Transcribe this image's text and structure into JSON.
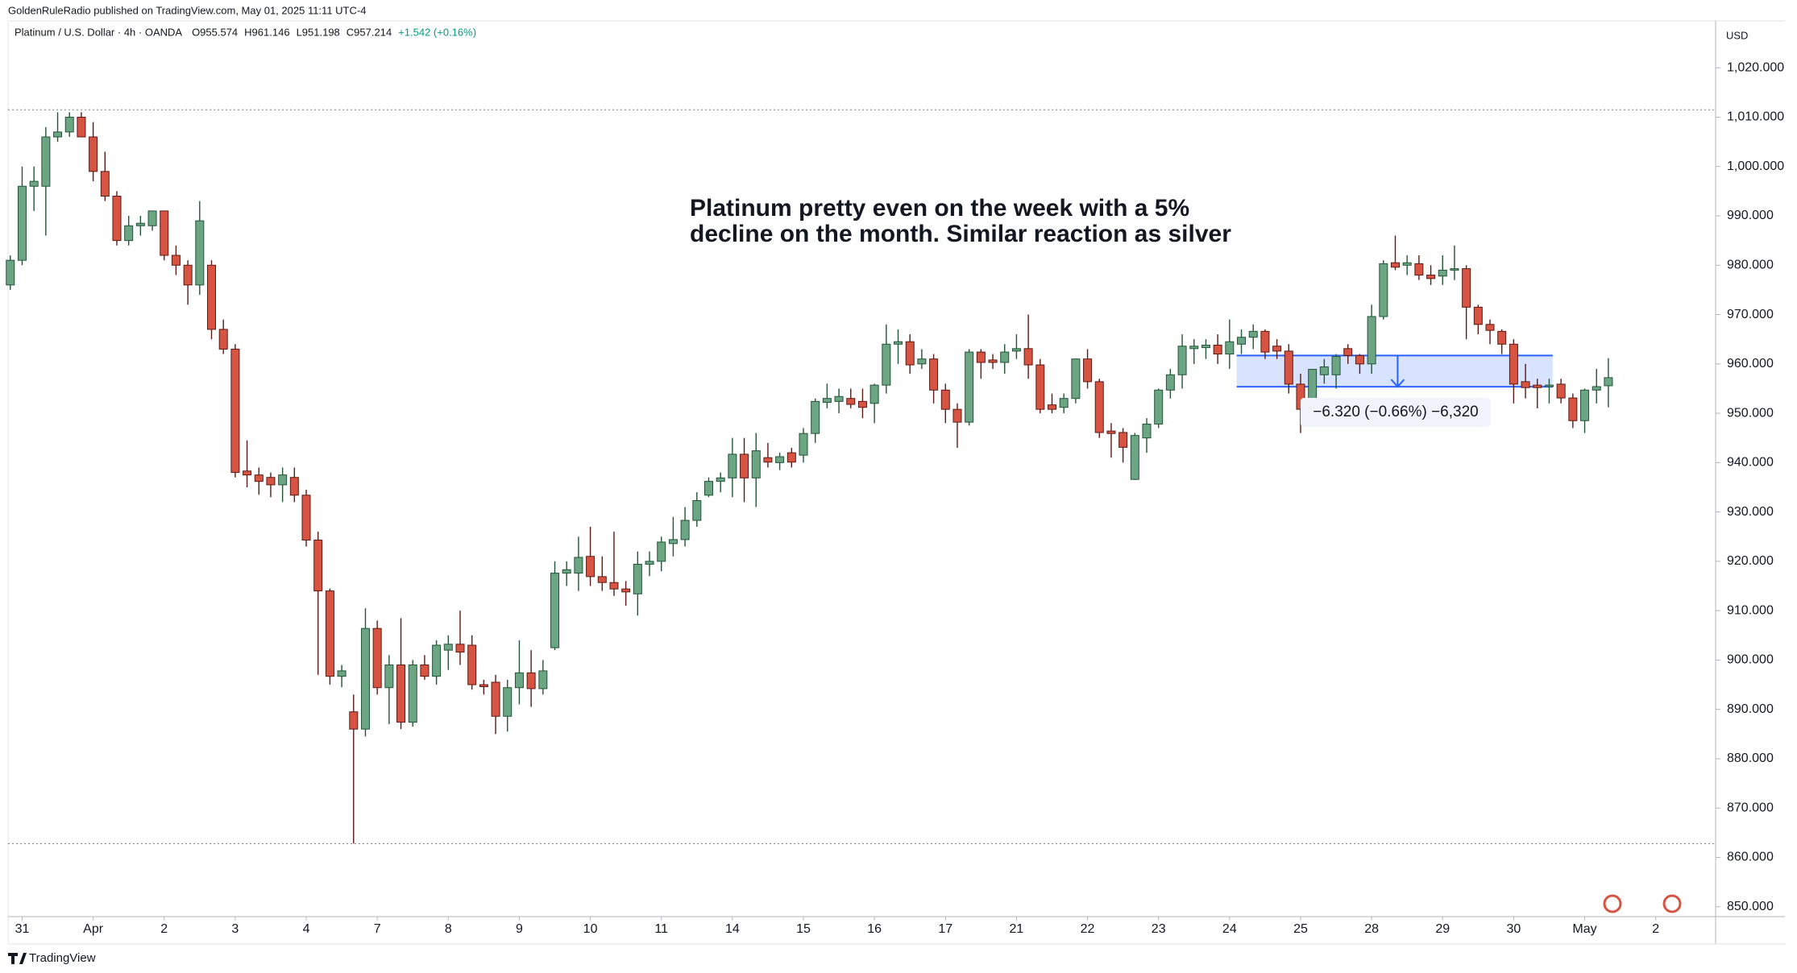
{
  "chart_data": {
    "type": "candlestick",
    "publisher": "GoldenRuleRadio published on TradingView.com, May 01, 2025 11:11 UTC-4",
    "symbol": "Platinum / U.S. Dollar · 4h · OANDA",
    "ohlc_labels": [
      "O955.574",
      "H961.146",
      "L951.198",
      "C957.214",
      "+1.542 (+0.16%)"
    ],
    "currency": "USD",
    "annotation": [
      "Platinum pretty even on the week with a 5%",
      "decline on the month.  Similar reaction as silver"
    ],
    "measure": {
      "start": 961.7,
      "end": 955.38,
      "label": "−6.320 (−0.66%) −6,320"
    },
    "reference_lines": [
      1011.5,
      862.8
    ],
    "brand": "TradingView",
    "up_color": "#6ba583",
    "down_color": "#d75442",
    "xlim": [
      -0.87,
      144.06
    ],
    "ylim": [
      848,
      1029.5
    ],
    "xticks": [
      {
        "value": 1,
        "label": "31"
      },
      {
        "value": 7,
        "label": "Apr"
      },
      {
        "value": 13,
        "label": "2"
      },
      {
        "value": 19,
        "label": "3"
      },
      {
        "value": 25,
        "label": "4"
      },
      {
        "value": 31,
        "label": "7"
      },
      {
        "value": 37,
        "label": "8"
      },
      {
        "value": 43,
        "label": "9"
      },
      {
        "value": 49,
        "label": "10"
      },
      {
        "value": 55,
        "label": "11"
      },
      {
        "value": 61,
        "label": "14"
      },
      {
        "value": 67,
        "label": "15"
      },
      {
        "value": 73,
        "label": "16"
      },
      {
        "value": 79,
        "label": "17"
      },
      {
        "value": 85,
        "label": "21"
      },
      {
        "value": 91,
        "label": "22"
      },
      {
        "value": 97,
        "label": "23"
      },
      {
        "value": 103,
        "label": "24"
      },
      {
        "value": 109,
        "label": "25"
      },
      {
        "value": 115,
        "label": "28"
      },
      {
        "value": 121,
        "label": "29"
      },
      {
        "value": 127,
        "label": "30"
      },
      {
        "value": 133,
        "label": "May"
      },
      {
        "value": 139,
        "label": "2"
      }
    ],
    "yticks": [
      {
        "value": 850,
        "label": "850.000"
      },
      {
        "value": 860,
        "label": "860.000"
      },
      {
        "value": 870,
        "label": "870.000"
      },
      {
        "value": 880,
        "label": "880.000"
      },
      {
        "value": 890,
        "label": "890.000"
      },
      {
        "value": 900,
        "label": "900.000"
      },
      {
        "value": 910,
        "label": "910.000"
      },
      {
        "value": 920,
        "label": "920.000"
      },
      {
        "value": 930,
        "label": "930.000"
      },
      {
        "value": 940,
        "label": "940.000"
      },
      {
        "value": 950,
        "label": "950.000"
      },
      {
        "value": 960,
        "label": "960.000"
      },
      {
        "value": 970,
        "label": "970.000"
      },
      {
        "value": 980,
        "label": "980.000"
      },
      {
        "value": 990,
        "label": "990.000"
      },
      {
        "value": 1000,
        "label": "1,000.000"
      },
      {
        "value": 1010,
        "label": "1,010.000"
      },
      {
        "value": 1020,
        "label": "1,020.000"
      }
    ],
    "candles": [
      [
        976,
        982,
        975,
        981
      ],
      [
        981,
        1000,
        980,
        996
      ],
      [
        996,
        1000,
        991,
        997
      ],
      [
        996,
        1008,
        986,
        1006
      ],
      [
        1006,
        1011,
        1005,
        1007
      ],
      [
        1007,
        1011,
        1006,
        1010
      ],
      [
        1010,
        1011,
        1006,
        1006
      ],
      [
        1006,
        1009,
        997,
        999
      ],
      [
        999,
        1003,
        993,
        994
      ],
      [
        994,
        995,
        984,
        985
      ],
      [
        985,
        990,
        984,
        988
      ],
      [
        988,
        990,
        986,
        988.5
      ],
      [
        988,
        991,
        987,
        991
      ],
      [
        991,
        991,
        981,
        982
      ],
      [
        982,
        984,
        978,
        980
      ],
      [
        980,
        981,
        972,
        976
      ],
      [
        976,
        993,
        974,
        989
      ],
      [
        980,
        981,
        965,
        967
      ],
      [
        967,
        969,
        962,
        963
      ],
      [
        963,
        964,
        937,
        938
      ],
      [
        938.3,
        944.5,
        935,
        937.5
      ],
      [
        937.5,
        939,
        933.5,
        936.2
      ],
      [
        937,
        938,
        933,
        935.5
      ],
      [
        935.5,
        939,
        932,
        937.5
      ],
      [
        937,
        939,
        932,
        933.4
      ],
      [
        933.4,
        934.5,
        923,
        924.3
      ],
      [
        924.3,
        926,
        897,
        914
      ],
      [
        914,
        914.5,
        895,
        896.7
      ],
      [
        896.7,
        899,
        894.5,
        897.8
      ],
      [
        889.5,
        893,
        862.8,
        886
      ],
      [
        886,
        910.5,
        884.5,
        906.4
      ],
      [
        906.4,
        908,
        893,
        894.4
      ],
      [
        894.4,
        901,
        887,
        899
      ],
      [
        899,
        908.5,
        886,
        887.4
      ],
      [
        887.4,
        900,
        886.5,
        899
      ],
      [
        899,
        901,
        896,
        896.7
      ],
      [
        896.7,
        904,
        895,
        903
      ],
      [
        902,
        905,
        898,
        903.2
      ],
      [
        903.2,
        910,
        899,
        901.6
      ],
      [
        903,
        905,
        894,
        895
      ],
      [
        895,
        896,
        893,
        894.6
      ],
      [
        895.5,
        897,
        885,
        888.6
      ],
      [
        888.6,
        896,
        885.5,
        894.4
      ],
      [
        894.4,
        904,
        891,
        897.4
      ],
      [
        897.4,
        902,
        890.5,
        894.2
      ],
      [
        894.2,
        900,
        893,
        897.8
      ],
      [
        902.5,
        920,
        902,
        917.6
      ],
      [
        917.6,
        920,
        915,
        918.3
      ],
      [
        917.6,
        925,
        914,
        920.8
      ],
      [
        921,
        927,
        915,
        916.9
      ],
      [
        916.9,
        921,
        914,
        915.7
      ],
      [
        915.7,
        926,
        913,
        914.4
      ],
      [
        914.4,
        916,
        911,
        913.8
      ],
      [
        913.4,
        922,
        909,
        919.4
      ],
      [
        919.4,
        922,
        917,
        920
      ],
      [
        920,
        925,
        918,
        923.9
      ],
      [
        923.6,
        929,
        921,
        924.4
      ],
      [
        924.4,
        931,
        923,
        928.3
      ],
      [
        928.3,
        934,
        927,
        932.3
      ],
      [
        933.4,
        937,
        933,
        936.2
      ],
      [
        936.2,
        938,
        934,
        936.9
      ],
      [
        936.9,
        945,
        933,
        941.7
      ],
      [
        941.7,
        945,
        932,
        936.9
      ],
      [
        936.9,
        946,
        931,
        942.4
      ],
      [
        941,
        944,
        939,
        940.1
      ],
      [
        940,
        942,
        938.5,
        941.2
      ],
      [
        942,
        943,
        939,
        940.1
      ],
      [
        941.5,
        947,
        940,
        945.9
      ],
      [
        945.9,
        953,
        944,
        952.4
      ],
      [
        952.2,
        956,
        951,
        953
      ],
      [
        952.4,
        955,
        950,
        953.4
      ],
      [
        953,
        955,
        951,
        951.8
      ],
      [
        952.4,
        955,
        949,
        951.2
      ],
      [
        952,
        956,
        948,
        955.7
      ],
      [
        955.7,
        968,
        954,
        964
      ],
      [
        964,
        967,
        960,
        964.5
      ],
      [
        964.5,
        966,
        958,
        959.8
      ],
      [
        960,
        963,
        959,
        961
      ],
      [
        961,
        962,
        952,
        954.7
      ],
      [
        954.7,
        956,
        948,
        950.8
      ],
      [
        950.8,
        952,
        943,
        948.2
      ],
      [
        948.2,
        963,
        947.5,
        962.4
      ],
      [
        962.4,
        963,
        957,
        960.3
      ],
      [
        960.8,
        962,
        959,
        960.3
      ],
      [
        960.3,
        964,
        958,
        962.4
      ],
      [
        962.6,
        966,
        961,
        963.1
      ],
      [
        963.1,
        970,
        957,
        959.8
      ],
      [
        959.8,
        961,
        950,
        950.8
      ],
      [
        951.7,
        954,
        950,
        950.8
      ],
      [
        951.2,
        954,
        950,
        953
      ],
      [
        953,
        961,
        952,
        961
      ],
      [
        961,
        963,
        955,
        956.4
      ],
      [
        956.4,
        957,
        945,
        946.1
      ],
      [
        946.4,
        948,
        941,
        945.9
      ],
      [
        946.1,
        947,
        940,
        943.1
      ],
      [
        936.6,
        946,
        936.5,
        945.5
      ],
      [
        945,
        949,
        942,
        947.8
      ],
      [
        947.8,
        955,
        947,
        954.7
      ],
      [
        954.7,
        959,
        953,
        957.8
      ],
      [
        957.8,
        966,
        955,
        963.6
      ],
      [
        963.1,
        965,
        960,
        963.6
      ],
      [
        963.3,
        965,
        961,
        963.8
      ],
      [
        963.8,
        966,
        960,
        962
      ],
      [
        962,
        969,
        959,
        964.5
      ],
      [
        964,
        967,
        962,
        965.4
      ],
      [
        965.4,
        968,
        963,
        966.6
      ],
      [
        966.6,
        967,
        961,
        962.4
      ],
      [
        963.6,
        965,
        961,
        962.6
      ],
      [
        962.6,
        964,
        954,
        955.9
      ],
      [
        955.9,
        958,
        946,
        950.8
      ],
      [
        950.8,
        958,
        949,
        958.9
      ],
      [
        957.8,
        961,
        956,
        959.4
      ],
      [
        957.8,
        962,
        955,
        961.5
      ],
      [
        963.1,
        964,
        960,
        961.7
      ],
      [
        961.7,
        962,
        958,
        960
      ],
      [
        960,
        972,
        958,
        969.6
      ],
      [
        969.6,
        981,
        969,
        980.3
      ],
      [
        980.5,
        986,
        979,
        979.6
      ],
      [
        980,
        982,
        978,
        980.5
      ],
      [
        980.3,
        982,
        977,
        978
      ],
      [
        978,
        980,
        976,
        977.3
      ],
      [
        977.8,
        982,
        976,
        979
      ],
      [
        979,
        984,
        977,
        979.3
      ],
      [
        979.3,
        980,
        965,
        971.5
      ],
      [
        971.5,
        972,
        966,
        968
      ],
      [
        968,
        969,
        964,
        966.8
      ],
      [
        966.6,
        967,
        962,
        964
      ],
      [
        964,
        965,
        952,
        955.9
      ],
      [
        956.4,
        960,
        953,
        955.2
      ],
      [
        955.7,
        957,
        951,
        955.2
      ],
      [
        955.4,
        957,
        952,
        955.7
      ],
      [
        955.9,
        957,
        952,
        953.1
      ],
      [
        953.1,
        954,
        947,
        948.5
      ],
      [
        948.5,
        955,
        946,
        954.7
      ],
      [
        954.7,
        959,
        952,
        955.4
      ],
      [
        955.574,
        961.146,
        951.198,
        957.214
      ]
    ]
  }
}
